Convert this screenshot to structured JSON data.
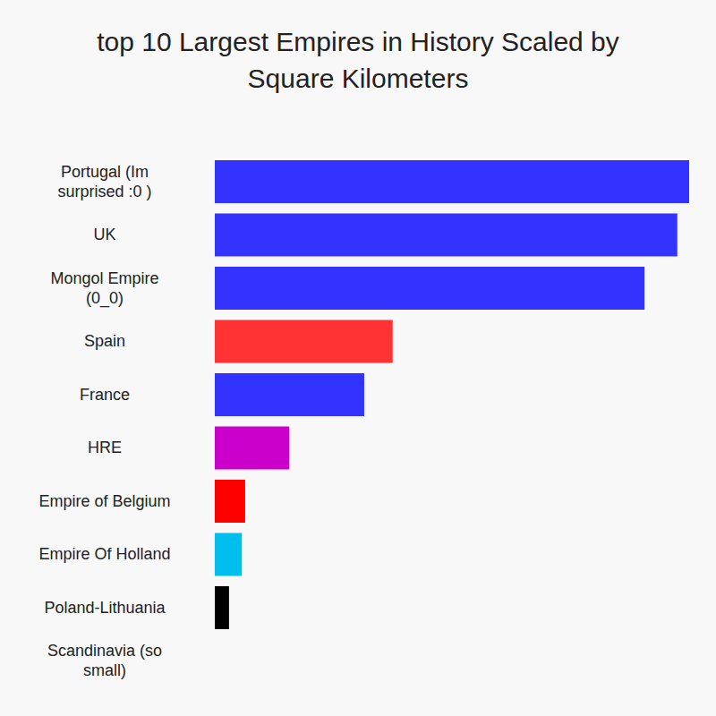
{
  "chart_data": {
    "type": "bar",
    "title": "top 10 Largest Empires in History Scaled by Square Kilometers",
    "orientation": "horizontal",
    "categories": [
      "Portugal (Im surprised :0 )",
      "UK",
      "Mongol Empire (0_0)",
      "Spain",
      "France",
      "HRE",
      "Empire of Belgium",
      "Empire Of Holland",
      "Poland-Lithuania",
      "Scandinavia (so small)"
    ],
    "values": [
      100,
      97.5,
      90.6,
      37.5,
      31.5,
      15.7,
      6.4,
      5.7,
      3,
      0
    ],
    "colors": [
      "#3333ff",
      "#3333ff",
      "#3333ff",
      "#ff3333",
      "#3333ff",
      "#cc00cc",
      "#ff0000",
      "#00bfef",
      "#000000",
      "#3333ff"
    ],
    "xlim": [
      0,
      100
    ],
    "tick_labels": false,
    "grid": false
  }
}
